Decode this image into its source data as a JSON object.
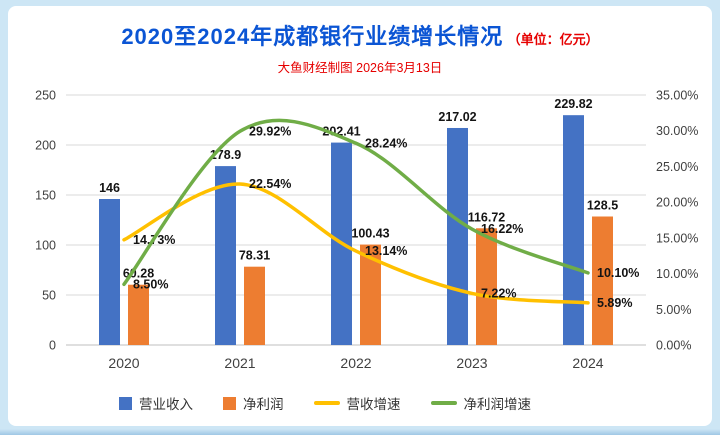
{
  "header": {
    "title": "2020至2024年成都银行业绩增长情况",
    "unit_note": "（单位：亿元）",
    "subtitle": "大鱼财经制图 2026年3月13日"
  },
  "colors": {
    "title_blue": "#0b55d4",
    "accent_red": "#e60000",
    "frame_blue": "#cde6f5",
    "grid_gray": "#d9d9d9"
  },
  "chart_data": {
    "type": "combo-bar-line",
    "title": "2020至2024年成都银行业绩增长情况（单位：亿元）",
    "subtitle": "大鱼财经制图 2026年3月13日",
    "categories": [
      "2020",
      "2021",
      "2022",
      "2023",
      "2024"
    ],
    "series": [
      {
        "name": "营业收入",
        "type": "bar",
        "axis": "left",
        "color": "#4472c4",
        "values": [
          146,
          178.9,
          202.41,
          217.02,
          229.82
        ],
        "labels": [
          "146",
          "178.9",
          "202.41",
          "217.02",
          "229.82"
        ]
      },
      {
        "name": "净利润",
        "type": "bar",
        "axis": "left",
        "color": "#ed7d31",
        "values": [
          60.28,
          78.31,
          100.43,
          116.72,
          128.5
        ],
        "labels": [
          "60.28",
          "78.31",
          "100.43",
          "116.72",
          "128.5"
        ]
      },
      {
        "name": "营收增速",
        "type": "line",
        "axis": "right",
        "color": "#ffc000",
        "values": [
          14.73,
          22.54,
          13.14,
          7.22,
          5.89
        ],
        "labels": [
          "14.73%",
          "22.54%",
          "13.14%",
          "7.22%",
          "5.89%"
        ]
      },
      {
        "name": "净利润增速",
        "type": "line",
        "axis": "right",
        "color": "#70ad47",
        "values": [
          8.5,
          29.92,
          28.24,
          16.22,
          10.1
        ],
        "labels": [
          "8.50%",
          "29.92%",
          "28.24%",
          "16.22%",
          "10.10%"
        ]
      }
    ],
    "left_axis": {
      "min": 0,
      "max": 250,
      "step": 50,
      "tick_labels": [
        "0",
        "50",
        "100",
        "150",
        "200",
        "250"
      ]
    },
    "right_axis": {
      "min": 0,
      "max": 35,
      "step": 5,
      "tick_labels": [
        "0.00%",
        "5.00%",
        "10.00%",
        "15.00%",
        "20.00%",
        "25.00%",
        "30.00%",
        "35.00%"
      ]
    },
    "grid": true,
    "legend_position": "bottom"
  }
}
